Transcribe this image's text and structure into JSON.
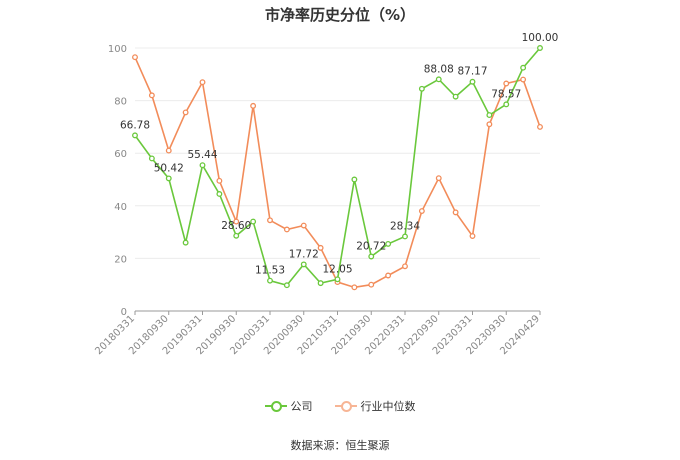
{
  "chart_data": {
    "type": "line",
    "title": "市净率历史分位（%）",
    "xlabel": "",
    "ylabel": "",
    "ylim": [
      0,
      100
    ],
    "yticks": [
      0,
      20,
      40,
      60,
      80,
      100
    ],
    "grid": true,
    "legend_position": "bottom",
    "x": [
      "20180331",
      "20180630",
      "20180930",
      "20181231",
      "20190331",
      "20190630",
      "20190930",
      "20191231",
      "20200331",
      "20200630",
      "20200930",
      "20201231",
      "20210331",
      "20210630",
      "20210930",
      "20211231",
      "20220331",
      "20220630",
      "20220930",
      "20221231",
      "20230331",
      "20230630",
      "20230930",
      "20231231",
      "20240429"
    ],
    "xtick_labels": [
      "20180331",
      "20180930",
      "20190331",
      "20190930",
      "20200331",
      "20200930",
      "20210331",
      "20210930",
      "20220331",
      "20220930",
      "20230331",
      "20230930",
      "20240429"
    ],
    "xtick_indices": [
      0,
      2,
      4,
      6,
      8,
      10,
      12,
      14,
      16,
      18,
      20,
      22,
      24
    ],
    "series": [
      {
        "name": "公司",
        "color": "#6ac83c",
        "values": [
          66.78,
          58.0,
          50.42,
          26.0,
          55.44,
          44.5,
          28.6,
          34.0,
          11.53,
          9.8,
          17.72,
          10.6,
          12.05,
          50.0,
          20.72,
          25.5,
          28.34,
          84.5,
          88.08,
          81.5,
          87.17,
          74.5,
          78.57,
          92.5,
          100.0
        ],
        "labels": {
          "0": "66.78",
          "2": "50.42",
          "4": "55.44",
          "6": "28.60",
          "8": "11.53",
          "10": "17.72",
          "12": "12.05",
          "14": "20.72",
          "16": "28.34",
          "18": "88.08",
          "20": "87.17",
          "22": "78.57",
          "24": "100.00"
        }
      },
      {
        "name": "行业中位数",
        "color": "#f28c5a",
        "values": [
          96.5,
          82.0,
          61.0,
          75.5,
          87.0,
          49.5,
          34.0,
          78.0,
          34.5,
          31.0,
          32.5,
          24.0,
          11.0,
          9.0,
          10.0,
          13.5,
          17.0,
          38.0,
          50.5,
          37.5,
          28.5,
          71.0,
          86.5,
          88.0,
          70.0
        ]
      }
    ]
  },
  "legend": {
    "company": "公司",
    "industry": "行业中位数"
  },
  "source_text": "数据来源：恒生聚源"
}
